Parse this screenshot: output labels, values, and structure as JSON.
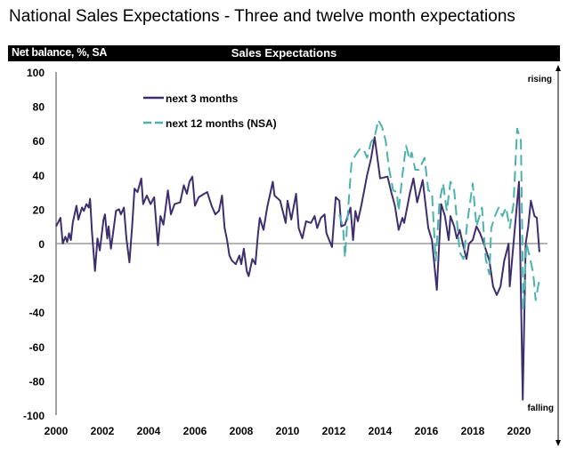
{
  "title": "National Sales Expectations - Three and twelve month expectations",
  "chart_data": {
    "type": "line",
    "title": "Sales Expectations",
    "ylabel": "Net balance, %, SA",
    "xlabel": "",
    "xlim": [
      2000,
      2021
    ],
    "ylim": [
      -100,
      100
    ],
    "yticks": [
      "100",
      "80",
      "60",
      "40",
      "20",
      "0",
      "-20",
      "-40",
      "-60",
      "-80",
      "-100"
    ],
    "xticks": [
      "2000",
      "2002",
      "2004",
      "2006",
      "2008",
      "2010",
      "2012",
      "2014",
      "2016",
      "2018",
      "2020"
    ],
    "grid": false,
    "legend_placement": "top-left",
    "annotations": {
      "top": "rising",
      "bottom": "falling"
    },
    "series": [
      {
        "name": "next 3 months",
        "color": "#3f2e6e",
        "style": "solid",
        "points": [
          [
            2000.0,
            10
          ],
          [
            2000.19,
            15
          ],
          [
            2000.29,
            0
          ],
          [
            2000.4,
            4
          ],
          [
            2000.48,
            1
          ],
          [
            2000.56,
            6
          ],
          [
            2000.64,
            2
          ],
          [
            2000.72,
            12
          ],
          [
            2000.88,
            22
          ],
          [
            2000.96,
            14
          ],
          [
            2001.12,
            21
          ],
          [
            2001.2,
            19
          ],
          [
            2001.31,
            23
          ],
          [
            2001.41,
            21
          ],
          [
            2001.47,
            26
          ],
          [
            2001.55,
            7
          ],
          [
            2001.68,
            -16
          ],
          [
            2001.79,
            3
          ],
          [
            2001.89,
            -4
          ],
          [
            2002.05,
            14
          ],
          [
            2002.11,
            17
          ],
          [
            2002.21,
            3
          ],
          [
            2002.27,
            10
          ],
          [
            2002.37,
            -3
          ],
          [
            2002.48,
            8
          ],
          [
            2002.59,
            19
          ],
          [
            2002.72,
            20
          ],
          [
            2002.8,
            17
          ],
          [
            2002.93,
            21
          ],
          [
            2003.04,
            3
          ],
          [
            2003.17,
            -11
          ],
          [
            2003.28,
            9
          ],
          [
            2003.39,
            32
          ],
          [
            2003.52,
            30
          ],
          [
            2003.68,
            38
          ],
          [
            2003.76,
            23
          ],
          [
            2003.92,
            28
          ],
          [
            2004.08,
            23
          ],
          [
            2004.24,
            27
          ],
          [
            2004.4,
            -1
          ],
          [
            2004.51,
            16
          ],
          [
            2004.64,
            11
          ],
          [
            2004.83,
            31
          ],
          [
            2004.96,
            17
          ],
          [
            2005.12,
            23
          ],
          [
            2005.36,
            24
          ],
          [
            2005.52,
            34
          ],
          [
            2005.65,
            29
          ],
          [
            2005.76,
            36
          ],
          [
            2005.89,
            39
          ],
          [
            2006.0,
            22
          ],
          [
            2006.16,
            27
          ],
          [
            2006.4,
            29
          ],
          [
            2006.53,
            30
          ],
          [
            2006.72,
            22
          ],
          [
            2006.88,
            17
          ],
          [
            2007.04,
            19
          ],
          [
            2007.17,
            28
          ],
          [
            2007.28,
            9
          ],
          [
            2007.39,
            2
          ],
          [
            2007.49,
            -7
          ],
          [
            2007.6,
            -10
          ],
          [
            2007.76,
            -12
          ],
          [
            2007.92,
            -7
          ],
          [
            2008.0,
            -12
          ],
          [
            2008.11,
            -3
          ],
          [
            2008.24,
            -16
          ],
          [
            2008.32,
            -19
          ],
          [
            2008.48,
            -9
          ],
          [
            2008.61,
            -12
          ],
          [
            2008.72,
            5
          ],
          [
            2008.8,
            15
          ],
          [
            2008.96,
            8
          ],
          [
            2009.12,
            21
          ],
          [
            2009.36,
            36
          ],
          [
            2009.44,
            28
          ],
          [
            2009.68,
            25
          ],
          [
            2009.92,
            12
          ],
          [
            2010.0,
            25
          ],
          [
            2010.16,
            14
          ],
          [
            2010.37,
            29
          ],
          [
            2010.48,
            9
          ],
          [
            2010.64,
            3
          ],
          [
            2010.8,
            13
          ],
          [
            2011.01,
            12
          ],
          [
            2011.17,
            16
          ],
          [
            2011.28,
            9
          ],
          [
            2011.44,
            15
          ],
          [
            2011.6,
            17
          ],
          [
            2011.68,
            6
          ],
          [
            2011.92,
            -2
          ],
          [
            2012.08,
            27
          ],
          [
            2012.24,
            25
          ],
          [
            2012.32,
            10
          ],
          [
            2012.48,
            11
          ],
          [
            2012.72,
            21
          ],
          [
            2012.83,
            2
          ],
          [
            2012.93,
            19
          ],
          [
            2013.04,
            13
          ],
          [
            2013.2,
            23
          ],
          [
            2013.44,
            40
          ],
          [
            2013.6,
            49
          ],
          [
            2013.76,
            62
          ],
          [
            2014.0,
            38
          ],
          [
            2014.32,
            39
          ],
          [
            2014.48,
            30
          ],
          [
            2014.64,
            22
          ],
          [
            2014.8,
            8
          ],
          [
            2014.96,
            15
          ],
          [
            2015.04,
            12
          ],
          [
            2015.28,
            29
          ],
          [
            2015.44,
            38
          ],
          [
            2015.6,
            24
          ],
          [
            2015.84,
            37
          ],
          [
            2016.08,
            9
          ],
          [
            2016.24,
            2
          ],
          [
            2016.45,
            -27
          ],
          [
            2016.64,
            23
          ],
          [
            2016.8,
            16
          ],
          [
            2016.96,
            2
          ],
          [
            2017.04,
            16
          ],
          [
            2017.2,
            10
          ],
          [
            2017.31,
            3
          ],
          [
            2017.44,
            8
          ],
          [
            2017.57,
            0
          ],
          [
            2017.73,
            -9
          ],
          [
            2017.84,
            0
          ],
          [
            2018.0,
            2
          ],
          [
            2018.16,
            10
          ],
          [
            2018.32,
            6
          ],
          [
            2018.48,
            0
          ],
          [
            2018.72,
            -10
          ],
          [
            2018.88,
            -25
          ],
          [
            2019.04,
            -30
          ],
          [
            2019.2,
            -25
          ],
          [
            2019.36,
            -10
          ],
          [
            2019.44,
            -6
          ],
          [
            2019.55,
            0
          ],
          [
            2019.6,
            -25
          ],
          [
            2019.76,
            0
          ],
          [
            2019.92,
            24
          ],
          [
            2020.0,
            36
          ],
          [
            2020.16,
            -91
          ],
          [
            2020.29,
            0
          ],
          [
            2020.4,
            10
          ],
          [
            2020.51,
            25
          ],
          [
            2020.67,
            16
          ],
          [
            2020.77,
            15
          ],
          [
            2020.88,
            -5
          ]
        ]
      },
      {
        "name": "next 12 months (NSA)",
        "color": "#4bb3ac",
        "style": "dashed",
        "points": [
          [
            2012.24,
            17
          ],
          [
            2012.4,
            9
          ],
          [
            2012.48,
            -8
          ],
          [
            2012.64,
            24
          ],
          [
            2012.77,
            48
          ],
          [
            2012.96,
            52
          ],
          [
            2013.12,
            55
          ],
          [
            2013.28,
            55
          ],
          [
            2013.44,
            50
          ],
          [
            2013.6,
            59
          ],
          [
            2013.76,
            62
          ],
          [
            2013.92,
            72
          ],
          [
            2014.08,
            68
          ],
          [
            2014.24,
            60
          ],
          [
            2014.37,
            45
          ],
          [
            2014.56,
            31
          ],
          [
            2014.72,
            30
          ],
          [
            2014.8,
            19
          ],
          [
            2014.96,
            40
          ],
          [
            2015.12,
            57
          ],
          [
            2015.28,
            49
          ],
          [
            2015.36,
            53
          ],
          [
            2015.52,
            43
          ],
          [
            2015.68,
            43
          ],
          [
            2015.92,
            50
          ],
          [
            2016.08,
            31
          ],
          [
            2016.24,
            30
          ],
          [
            2016.4,
            -10
          ],
          [
            2016.56,
            24
          ],
          [
            2016.72,
            35
          ],
          [
            2016.88,
            19
          ],
          [
            2017.04,
            36
          ],
          [
            2017.2,
            31
          ],
          [
            2017.44,
            -5
          ],
          [
            2017.6,
            -9
          ],
          [
            2017.76,
            12
          ],
          [
            2018.0,
            35
          ],
          [
            2018.16,
            10
          ],
          [
            2018.4,
            21
          ],
          [
            2018.56,
            -9
          ],
          [
            2018.72,
            -18
          ],
          [
            2018.8,
            9
          ],
          [
            2018.96,
            16
          ],
          [
            2019.12,
            21
          ],
          [
            2019.28,
            16
          ],
          [
            2019.44,
            21
          ],
          [
            2019.6,
            9
          ],
          [
            2019.76,
            23
          ],
          [
            2019.92,
            67
          ],
          [
            2020.08,
            60
          ],
          [
            2020.19,
            -39
          ],
          [
            2020.32,
            0
          ],
          [
            2020.45,
            -7
          ],
          [
            2020.61,
            -17
          ],
          [
            2020.72,
            -33
          ],
          [
            2020.88,
            -21
          ]
        ]
      }
    ]
  }
}
